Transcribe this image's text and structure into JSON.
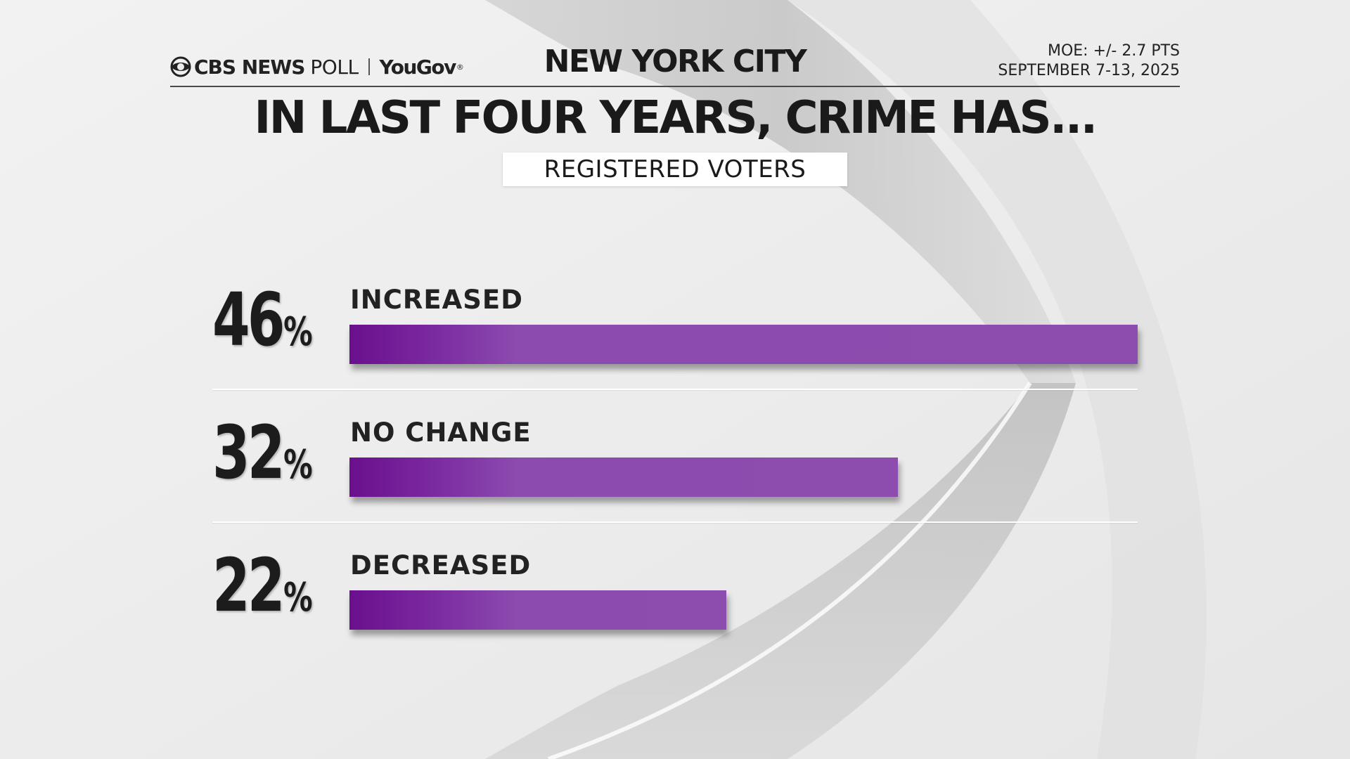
{
  "header": {
    "brand_cbs": "CBS NEWS",
    "brand_poll": "POLL",
    "brand_partner": "YouGov",
    "title": "NEW YORK CITY",
    "moe": "MOE: +/- 2.7 PTS",
    "dates": "SEPTEMBER 7-13, 2025"
  },
  "chart_data": {
    "type": "bar",
    "orientation": "horizontal",
    "title": "IN LAST FOUR YEARS, CRIME HAS...",
    "subtitle": "REGISTERED VOTERS",
    "categories": [
      "INCREASED",
      "NO CHANGE",
      "DECREASED"
    ],
    "values": [
      46,
      32,
      22
    ],
    "value_labels": [
      "46",
      "32",
      "22"
    ],
    "unit": "%",
    "xlim": [
      0,
      46
    ],
    "grid": false,
    "legend": "none",
    "bar_color_start": "#6a0f8e",
    "bar_color_end": "#8d4daf"
  }
}
